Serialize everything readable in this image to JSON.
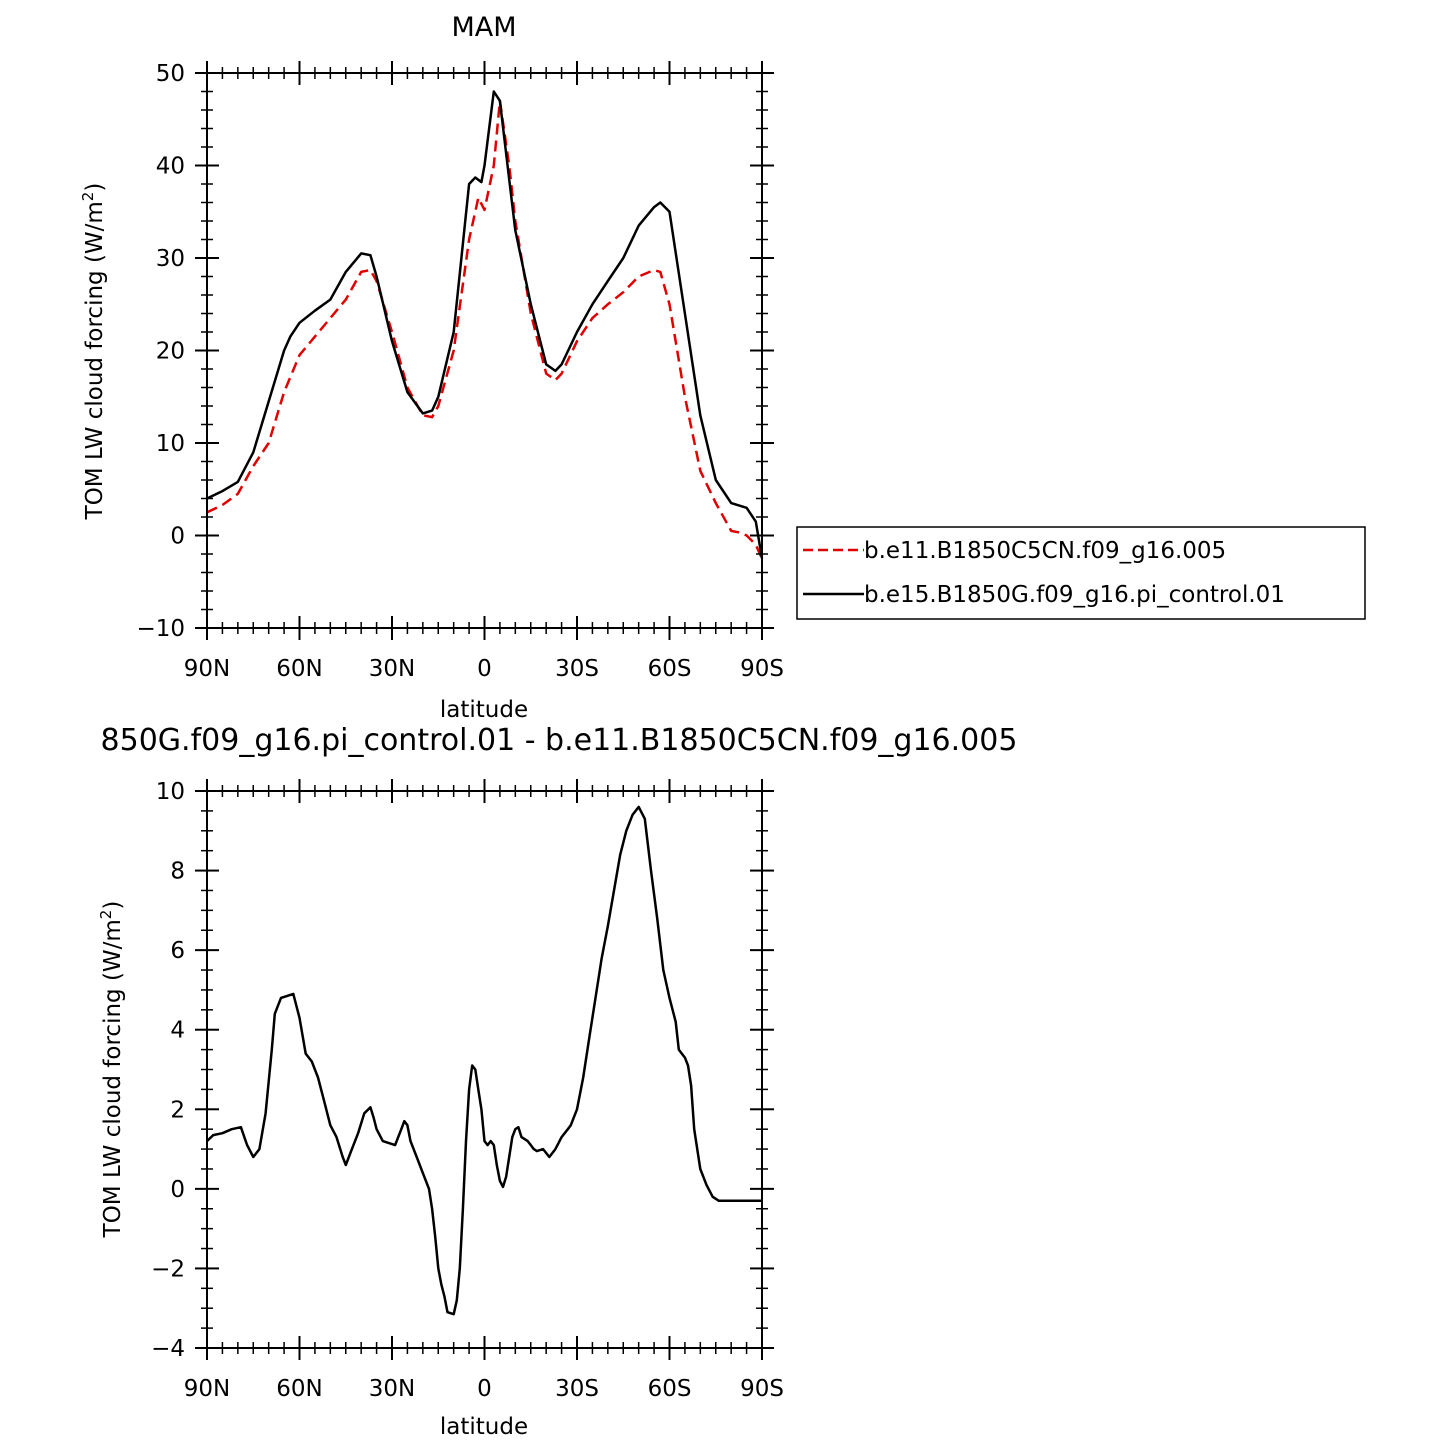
{
  "chart_data": [
    {
      "type": "line",
      "title": "MAM",
      "xlabel": "latitude",
      "ylabel": "TOM LW cloud forcing (W/m",
      "ylabel_sup": "2",
      "ylabel_close": ")",
      "xlim": [
        90,
        -90
      ],
      "ylim": [
        -10,
        50
      ],
      "yticks": [
        -10,
        0,
        10,
        20,
        30,
        40,
        50
      ],
      "xticks": [
        90,
        60,
        30,
        0,
        -30,
        -60,
        -90
      ],
      "xticklabels": [
        "90N",
        "60N",
        "30N",
        "0",
        "30S",
        "60S",
        "90S"
      ],
      "legend": "right",
      "series": [
        {
          "name": "b.e11.B1850C5CN.f09_g16.005",
          "color": "#e00000",
          "dash": "dashed",
          "x": [
            90,
            85,
            80,
            75,
            70,
            65,
            60,
            55,
            50,
            45,
            40,
            37,
            35,
            30,
            25,
            20,
            17,
            15,
            10,
            5,
            2,
            0,
            -3,
            -5,
            -8,
            -10,
            -15,
            -20,
            -23,
            -25,
            -30,
            -35,
            -40,
            -45,
            -50,
            -55,
            -57,
            -60,
            -65,
            -70,
            -75,
            -80,
            -83,
            -85,
            -88,
            -90
          ],
          "y": [
            2.5,
            3.3,
            4.5,
            7.5,
            10,
            15.5,
            19.5,
            21.5,
            23.5,
            25.5,
            28.5,
            28.7,
            27.5,
            22,
            16,
            13,
            12.8,
            14,
            20,
            32,
            36.5,
            35.2,
            40,
            47,
            40,
            34,
            24,
            17.5,
            16.8,
            17.5,
            21,
            23.5,
            25,
            26.3,
            28,
            28.7,
            28.5,
            25,
            15,
            7,
            3.5,
            0.5,
            0.3,
            0,
            -1,
            -2.5
          ]
        },
        {
          "name": "b.e15.B1850G.f09_g16.pi_control.01",
          "color": "#000000",
          "dash": "solid",
          "x": [
            90,
            85,
            80,
            75,
            70,
            65,
            63,
            60,
            55,
            50,
            45,
            40,
            37,
            35,
            30,
            25,
            20,
            17,
            15,
            10,
            5,
            3,
            1,
            0,
            -3,
            -5,
            -8,
            -10,
            -15,
            -20,
            -23,
            -25,
            -30,
            -35,
            -40,
            -45,
            -50,
            -55,
            -57,
            -60,
            -65,
            -70,
            -75,
            -80,
            -85,
            -88,
            -90
          ],
          "y": [
            4,
            4.8,
            5.8,
            9,
            14.5,
            20,
            21.5,
            23,
            24.3,
            25.5,
            28.5,
            30.5,
            30.3,
            28,
            21,
            15.5,
            13.2,
            13.5,
            15,
            22,
            38,
            38.7,
            38.2,
            40,
            48,
            47,
            38.5,
            33,
            25,
            18.5,
            17.8,
            18.5,
            22,
            25,
            27.5,
            30,
            33.5,
            35.5,
            36,
            35,
            24,
            13,
            6,
            3.5,
            3,
            1.5,
            -2.5
          ]
        }
      ]
    },
    {
      "type": "line",
      "title": "850G.f09_g16.pi_control.01 - b.e11.B1850C5CN.f09_g16.005",
      "xlabel": "latitude",
      "ylabel": "TOM LW cloud forcing (W/m",
      "ylabel_sup": "2",
      "ylabel_close": ")",
      "xlim": [
        90,
        -90
      ],
      "ylim": [
        -4,
        10
      ],
      "yticks": [
        -4,
        -2,
        0,
        2,
        4,
        6,
        8,
        10
      ],
      "xticks": [
        90,
        60,
        30,
        0,
        -30,
        -60,
        -90
      ],
      "xticklabels": [
        "90N",
        "60N",
        "30N",
        "0",
        "30S",
        "60S",
        "90S"
      ],
      "series": [
        {
          "color": "#000000",
          "dash": "solid",
          "x": [
            90,
            88,
            85,
            82,
            79,
            77,
            75,
            73,
            71,
            69,
            68,
            66,
            64,
            62,
            60,
            58,
            56,
            54,
            52,
            50,
            48,
            46,
            45,
            43,
            41,
            39,
            37,
            36,
            35,
            33,
            31,
            29,
            27,
            26,
            25,
            24,
            22,
            20,
            18,
            17,
            16,
            15,
            14,
            13,
            12,
            10,
            9,
            8,
            7,
            6,
            5,
            4,
            3,
            2,
            1,
            0,
            -1,
            -2,
            -3,
            -4,
            -5,
            -6,
            -7,
            -8,
            -9,
            -10,
            -11,
            -12,
            -14,
            -15,
            -16,
            -17,
            -19,
            -21,
            -23,
            -25,
            -27,
            -28,
            -30,
            -32,
            -34,
            -36,
            -38,
            -40,
            -42,
            -44,
            -46,
            -48,
            -50,
            -52,
            -54,
            -56,
            -58,
            -60,
            -62,
            -63,
            -64,
            -65,
            -66,
            -67,
            -68,
            -70,
            -72,
            -74,
            -76,
            -78,
            -80,
            -81,
            -82,
            -83,
            -84,
            -85,
            -86,
            -87,
            -88,
            -89,
            -90
          ],
          "y": [
            1.2,
            1.35,
            1.4,
            1.5,
            1.55,
            1.1,
            0.8,
            1.0,
            1.9,
            3.5,
            4.4,
            4.8,
            4.85,
            4.9,
            4.3,
            3.4,
            3.2,
            2.8,
            2.2,
            1.6,
            1.3,
            0.8,
            0.6,
            1.0,
            1.4,
            1.9,
            2.05,
            1.8,
            1.5,
            1.2,
            1.15,
            1.1,
            1.5,
            1.7,
            1.6,
            1.2,
            0.8,
            0.4,
            0.0,
            -0.5,
            -1.2,
            -2.0,
            -2.4,
            -2.7,
            -3.1,
            -3.15,
            -2.8,
            -2.0,
            -0.5,
            1.2,
            2.5,
            3.1,
            3.0,
            2.5,
            2.0,
            1.2,
            1.1,
            1.2,
            1.1,
            0.6,
            0.2,
            0.05,
            0.3,
            0.8,
            1.3,
            1.5,
            1.55,
            1.3,
            1.2,
            1.1,
            1.0,
            0.95,
            1.0,
            0.8,
            1.0,
            1.3,
            1.5,
            1.6,
            2.0,
            2.8,
            3.8,
            4.8,
            5.8,
            6.6,
            7.5,
            8.4,
            9.0,
            9.4,
            9.6,
            9.3,
            8.0,
            6.8,
            5.5,
            4.8,
            4.2,
            3.5,
            3.4,
            3.3,
            3.1,
            2.6,
            1.5,
            0.5,
            0.1,
            -0.2,
            -0.3,
            -0.3,
            -0.3,
            -0.3,
            -0.3,
            -0.3,
            -0.3,
            -0.3,
            -0.3,
            -0.3,
            -0.3,
            -0.3,
            -0.3
          ]
        }
      ]
    }
  ]
}
